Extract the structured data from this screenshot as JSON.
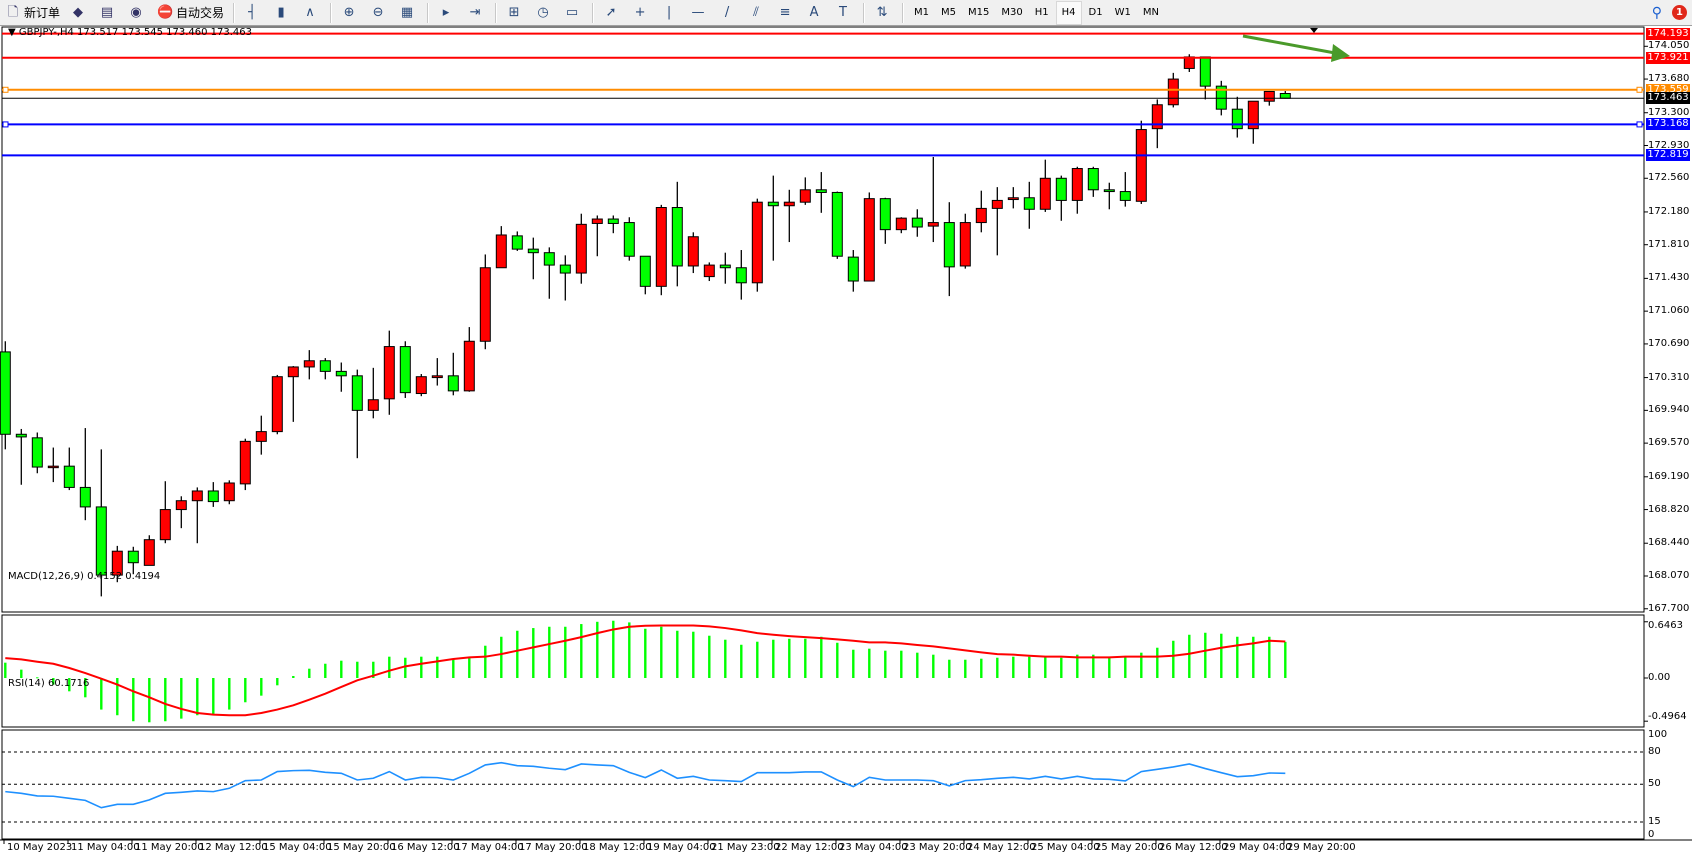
{
  "toolbar": {
    "items": [
      {
        "icon": "new-order-icon",
        "label": "新订单"
      },
      {
        "icon": "market-watch-icon",
        "label": ""
      },
      {
        "icon": "terminal-icon",
        "label": ""
      },
      {
        "icon": "signals-icon",
        "label": ""
      },
      {
        "icon": "auto-trading-icon",
        "label": "自动交易"
      }
    ],
    "chart_tools": [
      "bar-chart-icon",
      "candlestick-icon",
      "line-chart-icon",
      "zoom-in-icon",
      "zoom-out-icon",
      "tile-windows-icon",
      "auto-scroll-icon",
      "chart-shift-icon",
      "indicators-icon",
      "periods-icon",
      "templates-icon",
      "cursor-icon",
      "crosshair-icon",
      "vertical-line-icon",
      "horizontal-line-icon",
      "trendline-icon",
      "equidistant-channel-icon",
      "fibonacci-icon",
      "text-icon",
      "text-label-icon",
      "arrows-icon"
    ],
    "timeframes": [
      "M1",
      "M5",
      "M15",
      "M30",
      "H1",
      "H4",
      "D1",
      "W1",
      "MN"
    ],
    "active_timeframe": "H4",
    "notification_count": "1"
  },
  "chart": {
    "header": "GBPJPY-,H4  173.517 173.545 173.460 173.463",
    "symbol": "GBPJPY-",
    "timeframe": "H4",
    "ohlc": {
      "open": 173.517,
      "high": 173.545,
      "low": 173.46,
      "close": 173.463
    },
    "colors": {
      "bull": "#ff0000",
      "bear": "#00ff00",
      "bid_line": "#000000"
    },
    "price_ticks": [
      "174.050",
      "173.680",
      "173.300",
      "172.930",
      "172.560",
      "172.180",
      "171.810",
      "171.430",
      "171.060",
      "170.690",
      "170.310",
      "169.940",
      "169.570",
      "169.190",
      "168.820",
      "168.440",
      "168.070",
      "167.700"
    ],
    "levels": [
      {
        "price": "174.193",
        "color": "#ff0000"
      },
      {
        "price": "173.921",
        "color": "#ff0000"
      },
      {
        "price": "173.559",
        "color": "#ff8c00"
      },
      {
        "price": "173.463",
        "color": "#000000"
      },
      {
        "price": "173.168",
        "color": "#0000ff"
      },
      {
        "price": "172.819",
        "color": "#0000ff"
      }
    ],
    "annotation_arrow_color": "#4a9a2a",
    "candles": [
      [
        170.6,
        170.72,
        169.5,
        169.67
      ],
      [
        169.67,
        169.73,
        169.1,
        169.64
      ],
      [
        169.63,
        169.69,
        169.23,
        169.3
      ],
      [
        169.31,
        169.52,
        169.13,
        169.31
      ],
      [
        169.31,
        169.52,
        169.04,
        169.07
      ],
      [
        169.07,
        169.74,
        168.7,
        168.85
      ],
      [
        168.85,
        169.5,
        167.84,
        168.08
      ],
      [
        168.08,
        168.41,
        168.0,
        168.35
      ],
      [
        168.35,
        168.4,
        168.09,
        168.22
      ],
      [
        168.19,
        168.53,
        168.19,
        168.48
      ],
      [
        168.48,
        169.14,
        168.44,
        168.82
      ],
      [
        168.82,
        168.97,
        168.61,
        168.92
      ],
      [
        168.92,
        169.07,
        168.44,
        169.03
      ],
      [
        169.03,
        169.13,
        168.85,
        168.91
      ],
      [
        168.92,
        169.15,
        168.88,
        169.12
      ],
      [
        169.11,
        169.62,
        169.04,
        169.59
      ],
      [
        169.59,
        169.88,
        169.44,
        169.7
      ],
      [
        169.7,
        170.34,
        169.67,
        170.32
      ],
      [
        170.32,
        170.44,
        169.81,
        170.43
      ],
      [
        170.43,
        170.62,
        170.29,
        170.5
      ],
      [
        170.5,
        170.53,
        170.29,
        170.38
      ],
      [
        170.38,
        170.48,
        170.15,
        170.33
      ],
      [
        170.33,
        170.4,
        169.4,
        169.94
      ],
      [
        169.94,
        170.42,
        169.85,
        170.06
      ],
      [
        170.07,
        170.84,
        169.89,
        170.66
      ],
      [
        170.66,
        170.72,
        170.08,
        170.14
      ],
      [
        170.13,
        170.35,
        170.1,
        170.32
      ],
      [
        170.31,
        170.53,
        170.22,
        170.33
      ],
      [
        170.33,
        170.59,
        170.11,
        170.16
      ],
      [
        170.16,
        170.88,
        170.15,
        170.72
      ],
      [
        170.72,
        171.7,
        170.63,
        171.55
      ],
      [
        171.55,
        172.02,
        171.55,
        171.92
      ],
      [
        171.91,
        171.96,
        171.74,
        171.76
      ],
      [
        171.76,
        171.89,
        171.42,
        171.72
      ],
      [
        171.72,
        171.78,
        171.2,
        171.58
      ],
      [
        171.58,
        171.69,
        171.18,
        171.49
      ],
      [
        171.49,
        172.16,
        171.37,
        172.04
      ],
      [
        172.05,
        172.14,
        171.68,
        172.1
      ],
      [
        172.1,
        172.14,
        171.94,
        172.05
      ],
      [
        172.06,
        172.12,
        171.63,
        171.68
      ],
      [
        171.68,
        171.68,
        171.25,
        171.34
      ],
      [
        171.34,
        172.26,
        171.24,
        172.23
      ],
      [
        172.23,
        172.52,
        171.34,
        171.57
      ],
      [
        171.57,
        171.95,
        171.49,
        171.9
      ],
      [
        171.45,
        171.61,
        171.4,
        171.58
      ],
      [
        171.58,
        171.72,
        171.37,
        171.55
      ],
      [
        171.55,
        171.75,
        171.19,
        171.38
      ],
      [
        171.38,
        172.33,
        171.28,
        172.29
      ],
      [
        172.29,
        172.59,
        171.63,
        172.25
      ],
      [
        172.25,
        172.43,
        171.84,
        172.29
      ],
      [
        172.29,
        172.57,
        172.26,
        172.43
      ],
      [
        172.43,
        172.63,
        172.17,
        172.4
      ],
      [
        172.4,
        172.41,
        171.65,
        171.68
      ],
      [
        171.67,
        171.75,
        171.28,
        171.4
      ],
      [
        171.4,
        172.4,
        171.4,
        172.33
      ],
      [
        172.33,
        172.34,
        171.82,
        171.98
      ],
      [
        171.98,
        172.12,
        171.94,
        172.11
      ],
      [
        172.11,
        172.21,
        171.9,
        172.01
      ],
      [
        172.02,
        172.8,
        171.84,
        172.06
      ],
      [
        172.06,
        172.29,
        171.23,
        171.56
      ],
      [
        171.57,
        172.16,
        171.54,
        172.06
      ],
      [
        172.06,
        172.42,
        171.95,
        172.22
      ],
      [
        172.22,
        172.46,
        171.69,
        172.31
      ],
      [
        172.32,
        172.46,
        172.22,
        172.34
      ],
      [
        172.34,
        172.52,
        171.99,
        172.21
      ],
      [
        172.21,
        172.77,
        172.18,
        172.56
      ],
      [
        172.56,
        172.59,
        172.08,
        172.31
      ],
      [
        172.31,
        172.69,
        172.16,
        172.67
      ],
      [
        172.67,
        172.69,
        172.35,
        172.43
      ],
      [
        172.43,
        172.51,
        172.21,
        172.41
      ],
      [
        172.41,
        172.63,
        172.24,
        172.31
      ],
      [
        172.3,
        173.21,
        172.27,
        173.11
      ],
      [
        173.12,
        173.45,
        172.9,
        173.39
      ],
      [
        173.39,
        173.75,
        173.36,
        173.68
      ],
      [
        173.8,
        173.96,
        173.76,
        173.93
      ],
      [
        173.93,
        173.93,
        173.45,
        173.6
      ],
      [
        173.6,
        173.66,
        173.27,
        173.34
      ],
      [
        173.34,
        173.48,
        173.02,
        173.12
      ],
      [
        173.12,
        173.43,
        172.95,
        173.43
      ],
      [
        173.43,
        173.54,
        173.38,
        173.54
      ],
      [
        173.517,
        173.545,
        173.46,
        173.463
      ]
    ],
    "time_labels": [
      "10 May 2023",
      "11 May 04:00",
      "11 May 20:00",
      "12 May 12:00",
      "15 May 04:00",
      "15 May 20:00",
      "16 May 12:00",
      "17 May 04:00",
      "17 May 20:00",
      "18 May 12:00",
      "19 May 04:00",
      "21 May 23:00",
      "22 May 12:00",
      "23 May 04:00",
      "23 May 20:00",
      "24 May 12:00",
      "25 May 04:00",
      "25 May 20:00",
      "26 May 12:00",
      "29 May 04:00",
      "29 May 20:00"
    ]
  },
  "macd": {
    "label": "MACD(12,26,9) 0.4152 0.4194",
    "ticks": [
      "0.6463",
      "0.00",
      "-0.4964"
    ],
    "colors": {
      "histogram": "#00ff00",
      "signal": "#ff0000"
    },
    "histogram": [
      0.176,
      0.096,
      0.008,
      -0.076,
      -0.153,
      -0.222,
      -0.363,
      -0.428,
      -0.497,
      -0.509,
      -0.497,
      -0.467,
      -0.428,
      -0.421,
      -0.363,
      -0.279,
      -0.203,
      -0.084,
      0.023,
      0.107,
      0.164,
      0.199,
      0.187,
      0.187,
      0.245,
      0.233,
      0.245,
      0.245,
      0.214,
      0.229,
      0.371,
      0.474,
      0.543,
      0.574,
      0.589,
      0.589,
      0.62,
      0.646,
      0.658,
      0.639,
      0.566,
      0.589,
      0.543,
      0.532,
      0.486,
      0.44,
      0.382,
      0.417,
      0.44,
      0.451,
      0.451,
      0.474,
      0.405,
      0.325,
      0.337,
      0.314,
      0.314,
      0.291,
      0.268,
      0.21,
      0.21,
      0.222,
      0.233,
      0.245,
      0.245,
      0.245,
      0.233,
      0.268,
      0.268,
      0.245,
      0.245,
      0.291,
      0.348,
      0.428,
      0.497,
      0.52,
      0.509,
      0.474,
      0.474,
      0.474,
      0.4152
    ],
    "signal": [
      0.229,
      0.214,
      0.187,
      0.164,
      0.115,
      0.057,
      -0.008,
      -0.076,
      -0.153,
      -0.222,
      -0.298,
      -0.356,
      -0.402,
      -0.421,
      -0.428,
      -0.428,
      -0.402,
      -0.363,
      -0.314,
      -0.249,
      -0.18,
      -0.103,
      -0.027,
      0.027,
      0.084,
      0.134,
      0.164,
      0.191,
      0.218,
      0.237,
      0.245,
      0.275,
      0.314,
      0.352,
      0.39,
      0.428,
      0.47,
      0.516,
      0.558,
      0.589,
      0.6,
      0.604,
      0.604,
      0.604,
      0.593,
      0.574,
      0.547,
      0.516,
      0.497,
      0.482,
      0.47,
      0.459,
      0.444,
      0.428,
      0.409,
      0.409,
      0.398,
      0.379,
      0.363,
      0.34,
      0.317,
      0.294,
      0.275,
      0.268,
      0.256,
      0.245,
      0.245,
      0.237,
      0.237,
      0.237,
      0.245,
      0.245,
      0.245,
      0.256,
      0.279,
      0.314,
      0.348,
      0.375,
      0.398,
      0.428,
      0.4194
    ]
  },
  "rsi": {
    "label": "RSI(14) 60.1716",
    "ticks": [
      "100",
      "80",
      "50",
      "15",
      "0"
    ],
    "levels": [
      80,
      50,
      15
    ],
    "color": "#1e90ff",
    "values": [
      43.2,
      41.6,
      39.2,
      38.9,
      37.0,
      35.1,
      28.3,
      31.4,
      31.4,
      35.5,
      41.6,
      42.6,
      43.8,
      43.2,
      46.3,
      53.4,
      54.0,
      61.8,
      62.7,
      63.0,
      61.1,
      60.2,
      54.0,
      55.6,
      61.8,
      54.0,
      56.5,
      56.2,
      54.0,
      60.2,
      68.0,
      70.1,
      67.3,
      66.7,
      64.9,
      63.6,
      68.9,
      68.0,
      67.3,
      61.1,
      56.2,
      63.3,
      55.6,
      57.4,
      54.0,
      53.4,
      52.5,
      60.8,
      60.8,
      60.8,
      61.5,
      61.5,
      54.0,
      47.8,
      56.5,
      54.0,
      54.0,
      54.0,
      53.4,
      48.5,
      53.4,
      54.3,
      55.6,
      56.5,
      55.0,
      57.4,
      55.0,
      57.4,
      55.0,
      54.6,
      53.1,
      61.8,
      63.9,
      66.1,
      68.9,
      64.6,
      60.8,
      57.1,
      58.0,
      60.5,
      60.1716
    ]
  }
}
